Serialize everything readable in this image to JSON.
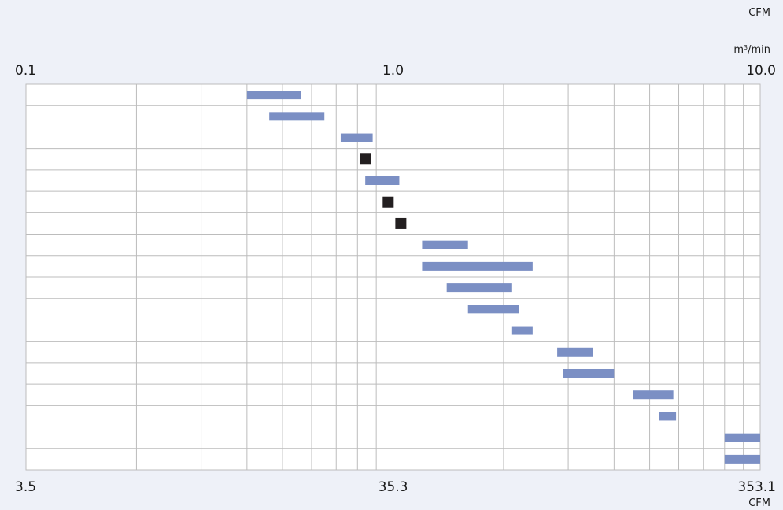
{
  "chart_data": {
    "type": "bar",
    "subtype": "floating-range",
    "x_scale": "log",
    "xlim": [
      0.1,
      10.0
    ],
    "top_axis": {
      "unit_top": "CFM",
      "unit": "m3/min",
      "ticks": [
        {
          "value": 0.1,
          "label": "0.1"
        },
        {
          "value": 1.0,
          "label": "1.0"
        },
        {
          "value": 10.0,
          "label": "10.0"
        }
      ]
    },
    "bottom_axis": {
      "unit": "CFM",
      "ticks": [
        {
          "value": 0.1,
          "label": "3.5"
        },
        {
          "value": 1.0,
          "label": "35.3"
        },
        {
          "value": 10.0,
          "label": "353.1"
        }
      ]
    },
    "grid": true,
    "rows": [
      {
        "kind": "range",
        "min": 0.4,
        "max": 0.56
      },
      {
        "kind": "range",
        "min": 0.46,
        "max": 0.65
      },
      {
        "kind": "range",
        "min": 0.72,
        "max": 0.88
      },
      {
        "kind": "point",
        "value": 0.84
      },
      {
        "kind": "range",
        "min": 0.84,
        "max": 1.04
      },
      {
        "kind": "point",
        "value": 0.97
      },
      {
        "kind": "point",
        "value": 1.05
      },
      {
        "kind": "range",
        "min": 1.2,
        "max": 1.6
      },
      {
        "kind": "range",
        "min": 1.2,
        "max": 2.4
      },
      {
        "kind": "range",
        "min": 1.4,
        "max": 2.1
      },
      {
        "kind": "range",
        "min": 1.6,
        "max": 2.2
      },
      {
        "kind": "range",
        "min": 2.1,
        "max": 2.4
      },
      {
        "kind": "range",
        "min": 2.8,
        "max": 3.5
      },
      {
        "kind": "range",
        "min": 2.9,
        "max": 4.0
      },
      {
        "kind": "range",
        "min": 4.5,
        "max": 5.8
      },
      {
        "kind": "range",
        "min": 5.3,
        "max": 5.9
      },
      {
        "kind": "range",
        "min": 8.0,
        "max": 10.0
      },
      {
        "kind": "range",
        "min": 8.0,
        "max": 10.0
      }
    ],
    "colors": {
      "bar": "#7b8fc4",
      "point": "#231f20",
      "grid": "#bcbcbc",
      "plot_bg": "#ffffff",
      "page_bg": "#eef1f8"
    }
  }
}
